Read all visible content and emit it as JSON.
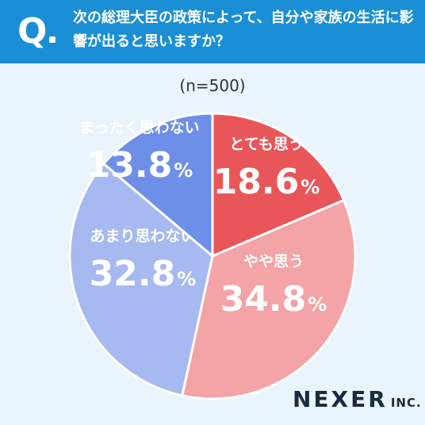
{
  "header": {
    "q_mark": "Q",
    "question": "次の総理大臣の政策によって、自分や家族の生活に影響が出ると思いますか？"
  },
  "sample": "(n=500)",
  "chart_data": {
    "type": "pie",
    "title": "",
    "start_angle_deg": 0,
    "direction": "clockwise",
    "slices": [
      {
        "label": "とても思う",
        "value": 18.6,
        "display": "18.6",
        "unit": "%",
        "color": "#e8565a"
      },
      {
        "label": "やや思う",
        "value": 34.8,
        "display": "34.8",
        "unit": "%",
        "color": "#f4a3a6"
      },
      {
        "label": "あまり思わない",
        "value": 32.8,
        "display": "32.8",
        "unit": "%",
        "color": "#a7b9f1"
      },
      {
        "label": "まったく思わない",
        "value": 13.8,
        "display": "13.8",
        "unit": "%",
        "color": "#6e8fe8"
      }
    ]
  },
  "brand": {
    "name": "NEXER",
    "suffix": "INC."
  }
}
